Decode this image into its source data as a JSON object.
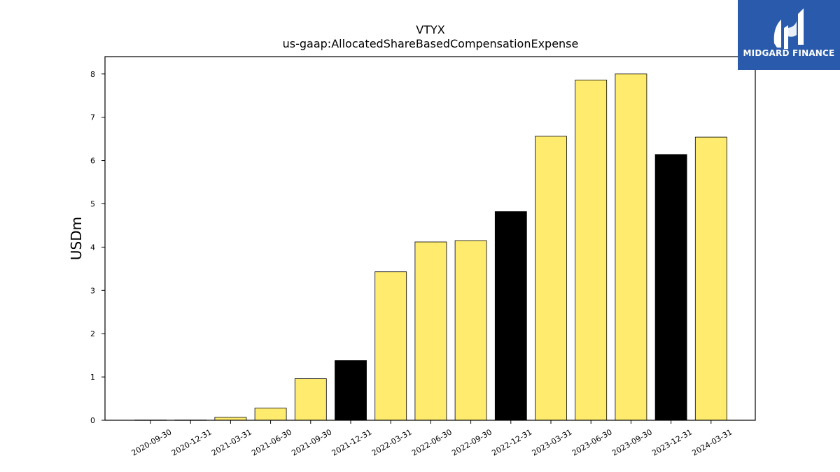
{
  "chart_data": {
    "type": "bar",
    "title": "VTYX",
    "subtitle": "us-gaap:AllocatedShareBasedCompensationExpense",
    "ylabel": "USDm",
    "xlabel": "",
    "ylim": [
      0,
      8.4
    ],
    "yticks": [
      0,
      1,
      2,
      3,
      4,
      5,
      6,
      7,
      8
    ],
    "categories": [
      "2020-09-30",
      "2020-12-31",
      "2021-03-31",
      "2021-06-30",
      "2021-09-30",
      "2021-12-31",
      "2022-03-31",
      "2022-06-30",
      "2022-09-30",
      "2022-12-31",
      "2023-03-31",
      "2023-06-30",
      "2023-09-30",
      "2023-12-31",
      "2024-03-31"
    ],
    "values": [
      0.005,
      0.005,
      0.07,
      0.28,
      0.96,
      1.38,
      3.43,
      4.12,
      4.15,
      4.82,
      6.56,
      7.86,
      8.0,
      6.14,
      6.54
    ],
    "bar_colors": [
      "#ffec6e",
      "#ffec6e",
      "#ffec6e",
      "#ffec6e",
      "#ffec6e",
      "#000000",
      "#ffec6e",
      "#ffec6e",
      "#ffec6e",
      "#000000",
      "#ffec6e",
      "#ffec6e",
      "#ffec6e",
      "#000000",
      "#ffec6e"
    ],
    "grid": false,
    "legend": "none"
  },
  "logo": {
    "text": "MIDGARD FINANCE",
    "background": "#2a5aab"
  }
}
